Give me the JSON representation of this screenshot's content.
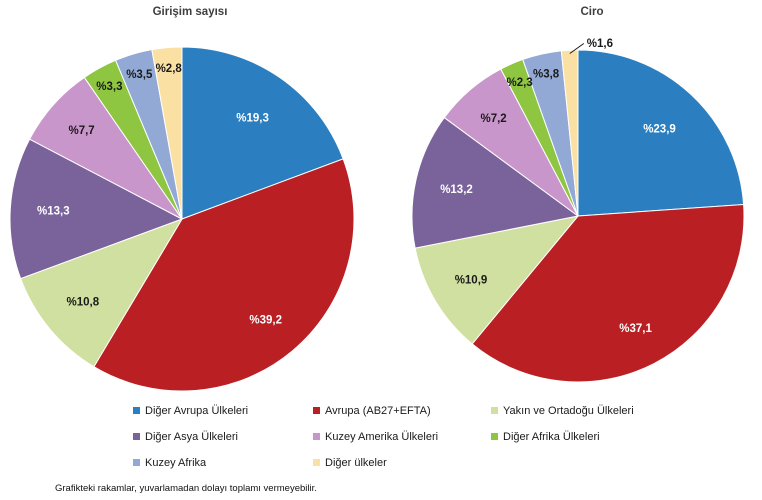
{
  "chart_data": [
    {
      "type": "pie",
      "title": "Girişim sayısı",
      "categories": [
        "Diğer Avrupa Ülkeleri",
        "Avrupa (AB27+EFTA)",
        "Yakın ve Ortadoğu Ülkeleri",
        "Diğer Asya Ülkeleri",
        "Kuzey Amerika Ülkeleri",
        "Diğer Afrika Ülkeleri",
        "Kuzey Afrika",
        "Diğer ülkeler"
      ],
      "values": [
        19.3,
        39.2,
        10.8,
        13.3,
        7.7,
        3.3,
        3.5,
        2.8
      ],
      "value_labels": [
        "%19,3",
        "%39,2",
        "%10,8",
        "%13,3",
        "%7,7",
        "%3,3",
        "%3,5",
        "%2,8"
      ],
      "colors": [
        "#2B7FC0",
        "#BA1F23",
        "#CFE0A0",
        "#7A629B",
        "#C996CC",
        "#8EC641",
        "#92A9D6",
        "#FBE0A3"
      ],
      "label_colors": [
        "#FFFFFF",
        "#FFFFFF",
        "#1A1A1A",
        "#FFFFFF",
        "#1A1A1A",
        "#1A1A1A",
        "#1A1A1A",
        "#1A1A1A"
      ],
      "start_angle_deg": 0,
      "direction": "clockwise",
      "legend_position": "bottom-shared",
      "grid": false
    },
    {
      "type": "pie",
      "title": "Ciro",
      "categories": [
        "Diğer Avrupa Ülkeleri",
        "Avrupa (AB27+EFTA)",
        "Yakın ve Ortadoğu Ülkeleri",
        "Diğer Asya Ülkeleri",
        "Kuzey Amerika Ülkeleri",
        "Diğer Afrika Ülkeleri",
        "Kuzey Afrika",
        "Diğer ülkeler"
      ],
      "values": [
        23.9,
        37.1,
        10.9,
        13.2,
        7.2,
        2.3,
        3.8,
        1.6
      ],
      "value_labels": [
        "%23,9",
        "%37,1",
        "%10,9",
        "%13,2",
        "%7,2",
        "%2,3",
        "%3,8",
        "%1,6"
      ],
      "colors": [
        "#2B7FC0",
        "#BA1F23",
        "#CFE0A0",
        "#7A629B",
        "#C996CC",
        "#8EC641",
        "#92A9D6",
        "#FBE0A3"
      ],
      "label_colors": [
        "#FFFFFF",
        "#FFFFFF",
        "#1A1A1A",
        "#FFFFFF",
        "#1A1A1A",
        "#1A1A1A",
        "#1A1A1A",
        "#1A1A1A"
      ],
      "start_angle_deg": 0,
      "direction": "clockwise",
      "legend_position": "bottom-shared",
      "grid": false
    }
  ],
  "legend": {
    "items": [
      {
        "label": "Diğer Avrupa Ülkeleri",
        "color": "#2B7FC0"
      },
      {
        "label": "Avrupa (AB27+EFTA)",
        "color": "#BA1F23"
      },
      {
        "label": "Yakın ve Ortadoğu Ülkeleri",
        "color": "#CFE0A0"
      },
      {
        "label": "Diğer Asya Ülkeleri",
        "color": "#7A629B"
      },
      {
        "label": "Kuzey Amerika Ülkeleri",
        "color": "#C996CC"
      },
      {
        "label": "Diğer Afrika Ülkeleri",
        "color": "#8EC641"
      },
      {
        "label": "Kuzey Afrika",
        "color": "#92A9D6"
      },
      {
        "label": "Diğer ülkeler",
        "color": "#FBE0A3"
      }
    ]
  },
  "footnote": "Grafikteki rakamlar, yuvarlamadan dolayı toplamı vermeyebilir."
}
